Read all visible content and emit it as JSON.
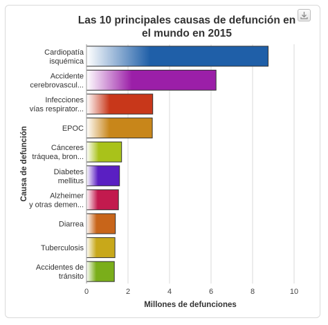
{
  "chart_data": {
    "type": "bar",
    "orientation": "horizontal",
    "title": "Las 10 principales causas de defunción en el mundo en 2015",
    "title_lines": [
      "Las 10 principales causas de defunción en",
      "el mundo en 2015"
    ],
    "xlabel": "Millones de defunciones",
    "ylabel": "Causa de defunción",
    "xlim": [
      0,
      10
    ],
    "xticks": [
      0,
      2,
      4,
      6,
      8,
      10
    ],
    "grid": true,
    "legend": "none",
    "categories": [
      {
        "lines": [
          "Cardiopatía",
          "isquémica"
        ],
        "value": 8.75,
        "color": "#1f5fa8"
      },
      {
        "lines": [
          "Accidente",
          "cerebrovascul..."
        ],
        "value": 6.24,
        "color": "#9b1fa8"
      },
      {
        "lines": [
          "Infecciones",
          "vías respirator..."
        ],
        "value": 3.19,
        "color": "#c8371a"
      },
      {
        "lines": [
          "EPOC"
        ],
        "value": 3.17,
        "color": "#c8861a"
      },
      {
        "lines": [
          "Cánceres",
          "tráquea, bron..."
        ],
        "value": 1.69,
        "color": "#a9c21a"
      },
      {
        "lines": [
          "Diabetes",
          "mellitus"
        ],
        "value": 1.59,
        "color": "#5a1fc2"
      },
      {
        "lines": [
          "Alzheimer",
          "y otras demen..."
        ],
        "value": 1.54,
        "color": "#c21a4e"
      },
      {
        "lines": [
          "Diarrea"
        ],
        "value": 1.39,
        "color": "#c8651a"
      },
      {
        "lines": [
          "Tuberculosis"
        ],
        "value": 1.37,
        "color": "#c8a81a"
      },
      {
        "lines": [
          "Accidentes de",
          "tránsito"
        ],
        "value": 1.34,
        "color": "#7aae1a"
      }
    ]
  }
}
